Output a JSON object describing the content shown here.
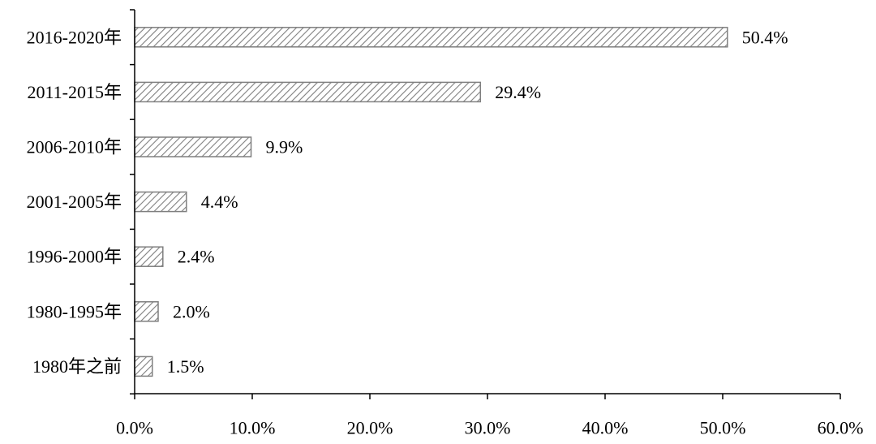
{
  "chart_data": {
    "type": "bar",
    "orientation": "horizontal",
    "categories": [
      "2016-2020年",
      "2011-2015年",
      "2006-2010年",
      "2001-2005年",
      "1996-2000年",
      "1980-1995年",
      "1980年之前"
    ],
    "values": [
      50.4,
      29.4,
      9.9,
      4.4,
      2.4,
      2.0,
      1.5
    ],
    "value_labels": [
      "50.4%",
      "29.4%",
      "9.9%",
      "4.4%",
      "2.4%",
      "2.0%",
      "1.5%"
    ],
    "xlim": [
      0,
      60
    ],
    "xticks": [
      0,
      10,
      20,
      30,
      40,
      50,
      60
    ],
    "xtick_labels": [
      "0.0%",
      "10.0%",
      "20.0%",
      "30.0%",
      "40.0%",
      "50.0%",
      "60.0%"
    ],
    "title": "",
    "xlabel": "",
    "ylabel": "",
    "grid": false,
    "bar_fill": "hatched",
    "colors": {
      "bar_stroke": "#7f7f7f",
      "hatch": "#7f7f7f",
      "axis": "#000000",
      "text": "#000000"
    }
  }
}
